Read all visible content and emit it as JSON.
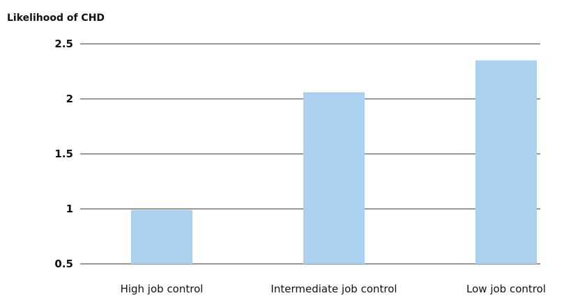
{
  "chart_data": {
    "type": "bar",
    "title": "",
    "ylabel": "Likelihood of CHD",
    "xlabel": "",
    "categories": [
      "High job control",
      "Intermediate job control",
      "Low job control"
    ],
    "values": [
      0.99,
      2.06,
      2.35
    ],
    "ylim": [
      0.5,
      2.5
    ],
    "yticks": [
      0.5,
      1,
      1.5,
      2,
      2.5
    ],
    "ytick_labels": [
      "0.5",
      "1",
      "1.5",
      "2",
      "2.5"
    ],
    "grid": "horizontal",
    "bar_color": "#acd1f0",
    "legend": "none"
  }
}
